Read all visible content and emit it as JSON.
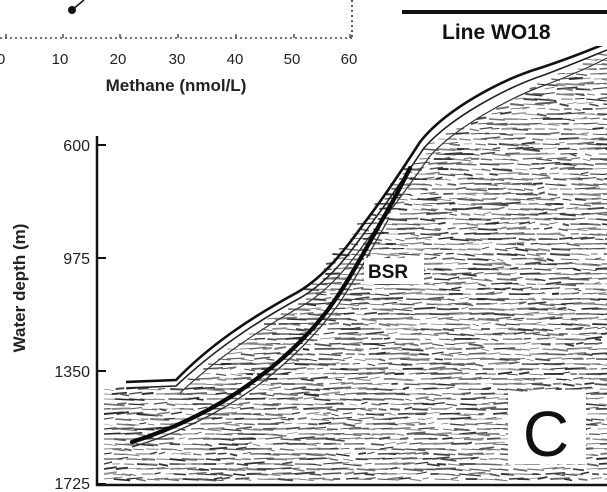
{
  "inset_plot": {
    "x_axis_title": "Methane (nmol/L)",
    "x_tick_labels": [
      "0",
      "10",
      "20",
      "30",
      "40",
      "50",
      "60"
    ],
    "visible_point": {
      "methane_nmol_per_l": 11.5
    }
  },
  "seismic_section": {
    "line_label": "Line WO18",
    "panel_letter": "C",
    "bsr_label": "BSR",
    "y_axis_title": "Water depth (m)",
    "y_tick_labels": [
      "600",
      "975",
      "1350",
      "1725"
    ]
  },
  "colors": {
    "ink": "#111111",
    "panel_background": "#ffffff",
    "noise_gray": "#7a7a7a"
  }
}
